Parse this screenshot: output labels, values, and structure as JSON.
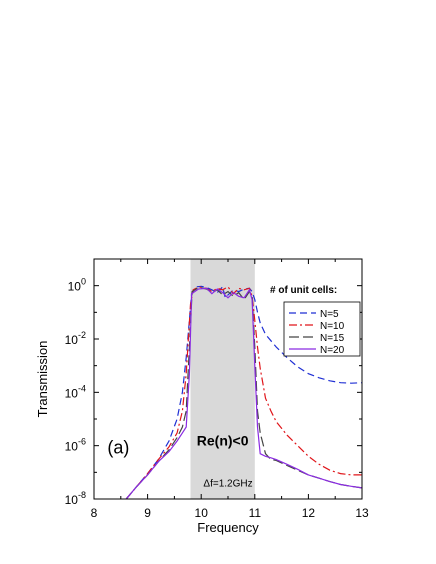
{
  "chart_data": {
    "type": "line",
    "title": "",
    "xlabel": "Frequency",
    "ylabel": "Transmission",
    "xlim": [
      8,
      13
    ],
    "ylim": [
      1e-08,
      10
    ],
    "yscale": "log",
    "xticks": [
      8,
      9,
      10,
      11,
      12,
      13
    ],
    "yticks": [
      {
        "value": 1,
        "base": "10",
        "exp": "0"
      },
      {
        "value": 0.01,
        "base": "10",
        "exp": "-2"
      },
      {
        "value": 0.0001,
        "base": "10",
        "exp": "-4"
      },
      {
        "value": 1e-06,
        "base": "10",
        "exp": "-6"
      },
      {
        "value": 1e-08,
        "base": "10",
        "exp": "-8"
      }
    ],
    "grid": false,
    "legend": {
      "title": "# of unit cells:",
      "position": "top-right"
    },
    "shaded_band": {
      "x0": 9.8,
      "x1": 11.0,
      "color": "#d9d9d9"
    },
    "annotations": [
      {
        "text": "Re(n)<0",
        "x": 10.4,
        "y": 1e-06,
        "style": "bold"
      },
      {
        "text": "Δf=1.2GHz",
        "x": 10.5,
        "y": 3e-08,
        "style": "small"
      },
      {
        "text": "(a)",
        "x": 8.25,
        "y": 5e-07,
        "style": "panel"
      }
    ],
    "series": [
      {
        "name": "N=5",
        "color": "#1f2fd4",
        "dash": "7,4",
        "points": [
          [
            8.6,
            1e-08
          ],
          [
            8.8,
            3e-08
          ],
          [
            9.0,
            9e-08
          ],
          [
            9.2,
            3e-07
          ],
          [
            9.4,
            1.5e-06
          ],
          [
            9.55,
            1e-05
          ],
          [
            9.65,
            0.0001
          ],
          [
            9.72,
            0.002
          ],
          [
            9.78,
            0.05
          ],
          [
            9.82,
            0.5
          ],
          [
            9.9,
            0.9
          ],
          [
            10.0,
            0.95
          ],
          [
            10.1,
            0.85
          ],
          [
            10.2,
            0.7
          ],
          [
            10.3,
            0.55
          ],
          [
            10.4,
            0.9
          ],
          [
            10.45,
            0.35
          ],
          [
            10.5,
            0.45
          ],
          [
            10.6,
            0.7
          ],
          [
            10.7,
            0.6
          ],
          [
            10.8,
            0.75
          ],
          [
            10.9,
            0.8
          ],
          [
            10.95,
            0.6
          ],
          [
            11.0,
            0.3
          ],
          [
            11.05,
            0.1
          ],
          [
            11.1,
            0.04
          ],
          [
            11.2,
            0.015
          ],
          [
            11.4,
            0.005
          ],
          [
            11.6,
            0.002
          ],
          [
            11.8,
            0.0009
          ],
          [
            12.0,
            0.0005
          ],
          [
            12.2,
            0.00035
          ],
          [
            12.4,
            0.00027
          ],
          [
            12.6,
            0.00023
          ],
          [
            12.8,
            0.00022
          ],
          [
            13.0,
            0.00023
          ]
        ]
      },
      {
        "name": "N=10",
        "color": "#e0151a",
        "dash": "8,3,2,3",
        "points": [
          [
            8.6,
            1e-08
          ],
          [
            8.8,
            3e-08
          ],
          [
            9.0,
            9e-08
          ],
          [
            9.2,
            3e-07
          ],
          [
            9.4,
            9e-07
          ],
          [
            9.55,
            3e-06
          ],
          [
            9.65,
            2e-05
          ],
          [
            9.72,
            0.0005
          ],
          [
            9.8,
            0.2
          ],
          [
            9.85,
            0.7
          ],
          [
            9.95,
            0.9
          ],
          [
            10.1,
            0.8
          ],
          [
            10.2,
            0.6
          ],
          [
            10.3,
            0.8
          ],
          [
            10.4,
            0.7
          ],
          [
            10.5,
            0.9
          ],
          [
            10.6,
            0.5
          ],
          [
            10.7,
            0.8
          ],
          [
            10.8,
            0.7
          ],
          [
            10.9,
            0.8
          ],
          [
            10.95,
            0.4
          ],
          [
            11.0,
            0.05
          ],
          [
            11.05,
            0.005
          ],
          [
            11.1,
            0.0008
          ],
          [
            11.2,
            6e-05
          ],
          [
            11.3,
            2e-05
          ],
          [
            11.4,
            8e-06
          ],
          [
            11.6,
            2.5e-06
          ],
          [
            11.8,
            1e-06
          ],
          [
            12.0,
            4e-07
          ],
          [
            12.2,
            2e-07
          ],
          [
            12.4,
            1.2e-07
          ],
          [
            12.6,
            9e-08
          ],
          [
            12.8,
            8e-08
          ],
          [
            13.0,
            8e-08
          ]
        ]
      },
      {
        "name": "N=15",
        "color": "#444444",
        "dash": "10,4",
        "points": [
          [
            8.6,
            1e-08
          ],
          [
            8.8,
            3e-08
          ],
          [
            9.0,
            8e-08
          ],
          [
            9.2,
            2.5e-07
          ],
          [
            9.4,
            7e-07
          ],
          [
            9.55,
            2e-06
          ],
          [
            9.65,
            5e-06
          ],
          [
            9.72,
            2e-05
          ],
          [
            9.78,
            0.005
          ],
          [
            9.83,
            0.6
          ],
          [
            9.95,
            0.85
          ],
          [
            10.1,
            0.75
          ],
          [
            10.2,
            0.55
          ],
          [
            10.3,
            0.7
          ],
          [
            10.4,
            0.45
          ],
          [
            10.5,
            0.6
          ],
          [
            10.6,
            0.4
          ],
          [
            10.7,
            0.55
          ],
          [
            10.8,
            0.3
          ],
          [
            10.9,
            0.6
          ],
          [
            10.95,
            0.4
          ],
          [
            11.0,
            0.005
          ],
          [
            11.05,
            2e-05
          ],
          [
            11.1,
            3e-06
          ],
          [
            11.2,
            5e-07
          ],
          [
            11.3,
            3e-07
          ],
          [
            11.4,
            2.8e-07
          ],
          [
            11.6,
            1.8e-07
          ],
          [
            11.8,
            1.2e-07
          ],
          [
            12.0,
            8e-08
          ],
          [
            12.2,
            6e-08
          ],
          [
            12.4,
            4.5e-08
          ],
          [
            12.6,
            3.5e-08
          ],
          [
            12.8,
            3e-08
          ],
          [
            13.0,
            2.6e-08
          ]
        ]
      },
      {
        "name": "N=20",
        "color": "#8a2be2",
        "dash": "",
        "points": [
          [
            8.6,
            1e-08
          ],
          [
            8.8,
            3e-08
          ],
          [
            9.0,
            8e-08
          ],
          [
            9.2,
            2.5e-07
          ],
          [
            9.4,
            6e-07
          ],
          [
            9.55,
            1.5e-06
          ],
          [
            9.65,
            3e-06
          ],
          [
            9.72,
            5e-06
          ],
          [
            9.78,
            0.0005
          ],
          [
            9.82,
            0.5
          ],
          [
            9.95,
            0.75
          ],
          [
            10.1,
            0.8
          ],
          [
            10.2,
            0.5
          ],
          [
            10.3,
            0.75
          ],
          [
            10.4,
            0.55
          ],
          [
            10.5,
            0.35
          ],
          [
            10.6,
            0.55
          ],
          [
            10.7,
            0.4
          ],
          [
            10.8,
            0.35
          ],
          [
            10.9,
            0.7
          ],
          [
            10.95,
            0.3
          ],
          [
            11.0,
            0.001
          ],
          [
            11.05,
            5e-06
          ],
          [
            11.1,
            5e-07
          ],
          [
            11.2,
            4e-07
          ],
          [
            11.3,
            3.5e-07
          ],
          [
            11.4,
            3e-07
          ],
          [
            11.6,
            2e-07
          ],
          [
            11.8,
            1.3e-07
          ],
          [
            12.0,
            8e-08
          ],
          [
            12.2,
            6e-08
          ],
          [
            12.4,
            4.5e-08
          ],
          [
            12.6,
            3.5e-08
          ],
          [
            12.8,
            3e-08
          ],
          [
            13.0,
            2.6e-08
          ]
        ]
      }
    ]
  }
}
